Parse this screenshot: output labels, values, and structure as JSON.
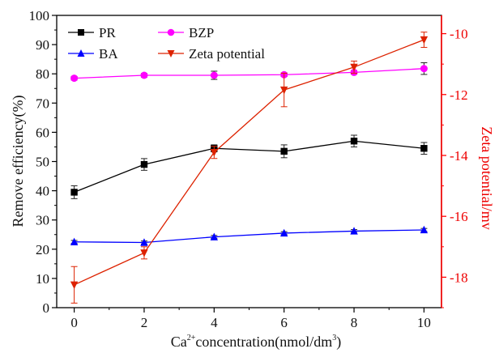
{
  "chart_data": {
    "type": "line",
    "x": [
      0,
      2,
      4,
      6,
      8,
      10
    ],
    "xlim": [
      -0.5,
      10.5
    ],
    "ylim_left": [
      0,
      100
    ],
    "ylim_right": [
      -19,
      -9.4
    ],
    "x_ticks": [
      "0",
      "2",
      "4",
      "6",
      "8",
      "10"
    ],
    "y_ticks_left": [
      "0",
      "10",
      "20",
      "30",
      "40",
      "50",
      "60",
      "70",
      "80",
      "90",
      "100"
    ],
    "y_ticks_right": [
      "-10",
      "-12",
      "-14",
      "-16",
      "-18"
    ],
    "xlabel": {
      "prefix": "Ca",
      "sup1": "2+",
      "middle": "concentration(nmol/dm",
      "sup2": "3",
      "suffix": ")"
    },
    "ylabel_left": "Remove efficiency(%)",
    "ylabel_right": "Zeta potential/mv",
    "legend_placement": "top-left",
    "series": [
      {
        "name": "PR",
        "axis": "left",
        "color": "#000000",
        "marker": "square",
        "values": [
          39.5,
          49,
          54.5,
          53.5,
          57,
          54.5
        ],
        "errors": [
          2.2,
          2.0,
          1.2,
          2.2,
          2.0,
          2.0
        ]
      },
      {
        "name": "BZP",
        "axis": "left",
        "color": "#ff00ff",
        "marker": "circle",
        "values": [
          78.5,
          79.5,
          79.5,
          79.7,
          80.5,
          81.8
        ],
        "errors": [
          0.6,
          0.6,
          1.4,
          0.6,
          0.6,
          2.0
        ]
      },
      {
        "name": "BA",
        "axis": "left",
        "color": "#0000ff",
        "marker": "triangle-up",
        "values": [
          22.5,
          22.3,
          24.2,
          25.5,
          26.2,
          26.6
        ],
        "errors": [
          0.5,
          0.5,
          0.5,
          0.5,
          0.5,
          0.5
        ]
      },
      {
        "name": "Zeta potential",
        "axis": "right",
        "color": "#dd2200",
        "marker": "triangle-down",
        "values": [
          -18.25,
          -17.2,
          -13.9,
          -11.85,
          -11.1,
          -10.2
        ],
        "errors": [
          0.6,
          0.2,
          0.2,
          0.55,
          0.2,
          0.25
        ]
      }
    ],
    "colors": {
      "axis_left": "#000000",
      "axis_right": "#ff0000"
    }
  }
}
